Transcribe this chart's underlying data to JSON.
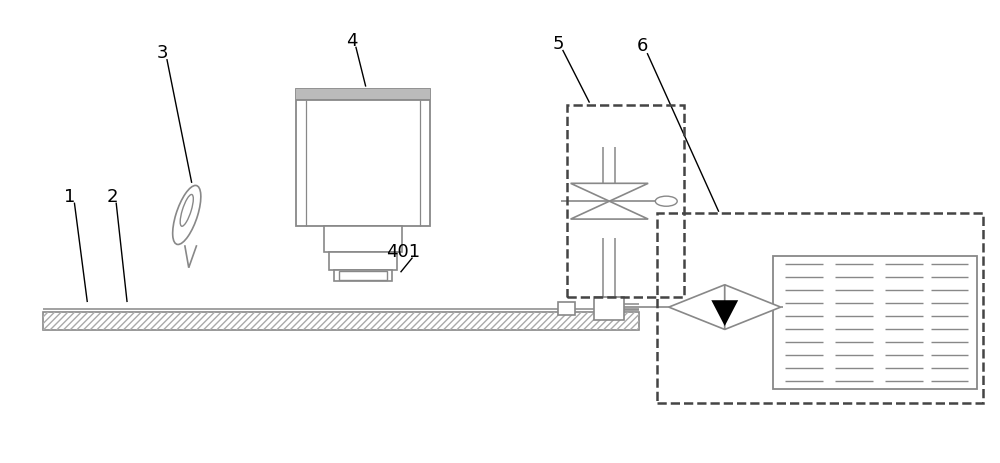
{
  "bg_color": "#ffffff",
  "line_color": "#888888",
  "dark_color": "#444444",
  "black_color": "#000000",
  "hatch_color": "#999999",
  "fig_width": 10.0,
  "fig_height": 4.64
}
